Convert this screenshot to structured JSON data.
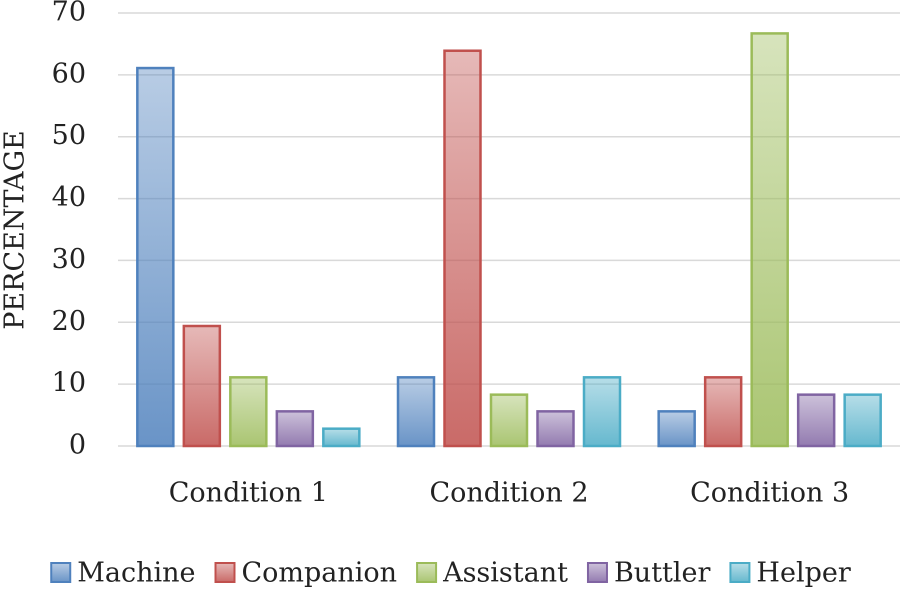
{
  "chart_data": {
    "type": "bar",
    "y_label": "PERCENTAGE",
    "categories": [
      "Condition 1",
      "Condition 2",
      "Condition 3"
    ],
    "series": [
      {
        "name": "Machine",
        "color": "#4f81bd",
        "values": [
          61.1,
          11.1,
          5.6
        ]
      },
      {
        "name": "Companion",
        "color": "#c0504d",
        "values": [
          19.4,
          63.9,
          11.1
        ]
      },
      {
        "name": "Assistant",
        "color": "#9bbb59",
        "values": [
          11.1,
          8.3,
          66.7
        ]
      },
      {
        "name": "Buttler",
        "color": "#8064a2",
        "values": [
          5.6,
          5.6,
          8.3
        ]
      },
      {
        "name": "Helper",
        "color": "#4bacc6",
        "values": [
          2.8,
          11.1,
          8.3
        ]
      }
    ],
    "ylim": [
      0,
      70
    ],
    "yticks": [
      0,
      10,
      20,
      30,
      40,
      50,
      60,
      70
    ],
    "grid": true,
    "legend": "bottom"
  }
}
